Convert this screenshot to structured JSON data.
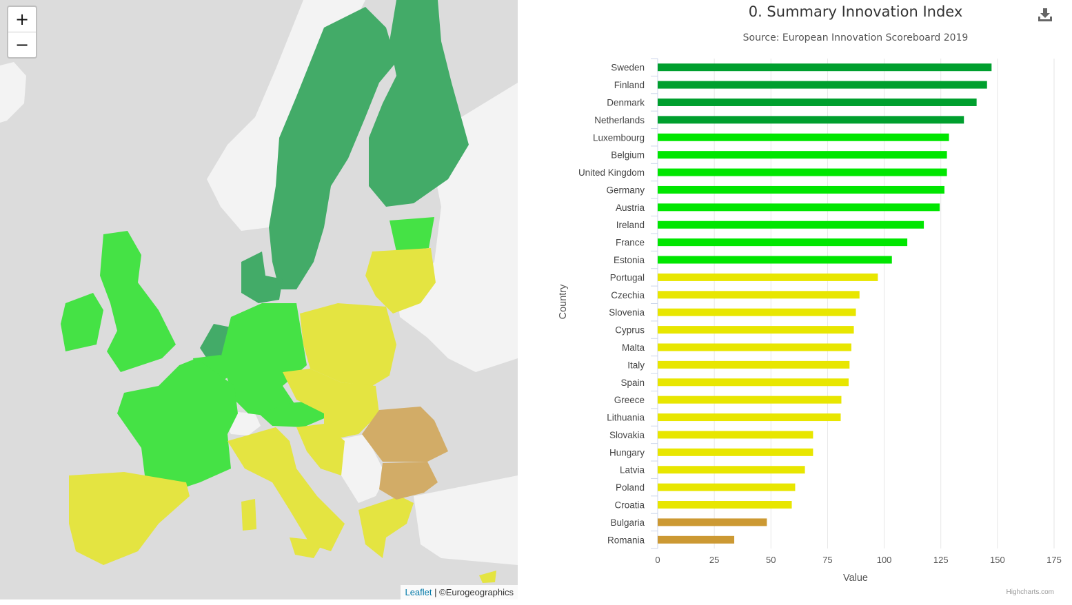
{
  "map": {
    "zoom_in_label": "+",
    "zoom_out_label": "−",
    "attribution_link": "Leaflet",
    "attribution_sep": " | ",
    "attribution_text": "©Eurogeographics"
  },
  "colors": {
    "leader": "#009f2e",
    "strong": "#00e600",
    "moderate": "#e8e600",
    "modest": "#cc9933",
    "map_leader": "#43ab68",
    "map_strong": "#45e245",
    "map_moderate": "#e4e441",
    "map_modest": "#d2ac67",
    "map_other": "#f3f3f3",
    "map_bg": "#dcdcdc"
  },
  "download_icon": "download-icon",
  "chart_data": {
    "type": "bar",
    "orientation": "horizontal",
    "title": "0. Summary Innovation Index",
    "subtitle": "Source: European Innovation Scoreboard 2019",
    "xlabel": "Country",
    "ylabel": "Value",
    "xlim": [
      0,
      175
    ],
    "ticks": [
      0,
      25,
      50,
      75,
      100,
      125,
      150,
      175
    ],
    "grid": true,
    "credits": "Highcharts.com",
    "categories": [
      "Sweden",
      "Finland",
      "Denmark",
      "Netherlands",
      "Luxembourg",
      "Belgium",
      "United Kingdom",
      "Germany",
      "Austria",
      "Ireland",
      "France",
      "Estonia",
      "Portugal",
      "Czechia",
      "Slovenia",
      "Cyprus",
      "Malta",
      "Italy",
      "Spain",
      "Greece",
      "Lithuania",
      "Slovakia",
      "Hungary",
      "Latvia",
      "Poland",
      "Croatia",
      "Bulgaria",
      "Romania"
    ],
    "values": [
      147.4,
      145.4,
      140.8,
      135.2,
      128.6,
      127.7,
      127.7,
      126.6,
      124.5,
      117.5,
      110.2,
      103.4,
      97.2,
      89.1,
      87.5,
      86.6,
      85.5,
      84.7,
      84.3,
      81.1,
      80.8,
      68.6,
      68.6,
      65.0,
      60.7,
      59.2,
      48.2,
      33.8
    ],
    "tiers": [
      "leader",
      "leader",
      "leader",
      "leader",
      "strong",
      "strong",
      "strong",
      "strong",
      "strong",
      "strong",
      "strong",
      "strong",
      "moderate",
      "moderate",
      "moderate",
      "moderate",
      "moderate",
      "moderate",
      "moderate",
      "moderate",
      "moderate",
      "moderate",
      "moderate",
      "moderate",
      "moderate",
      "moderate",
      "modest",
      "modest"
    ]
  }
}
